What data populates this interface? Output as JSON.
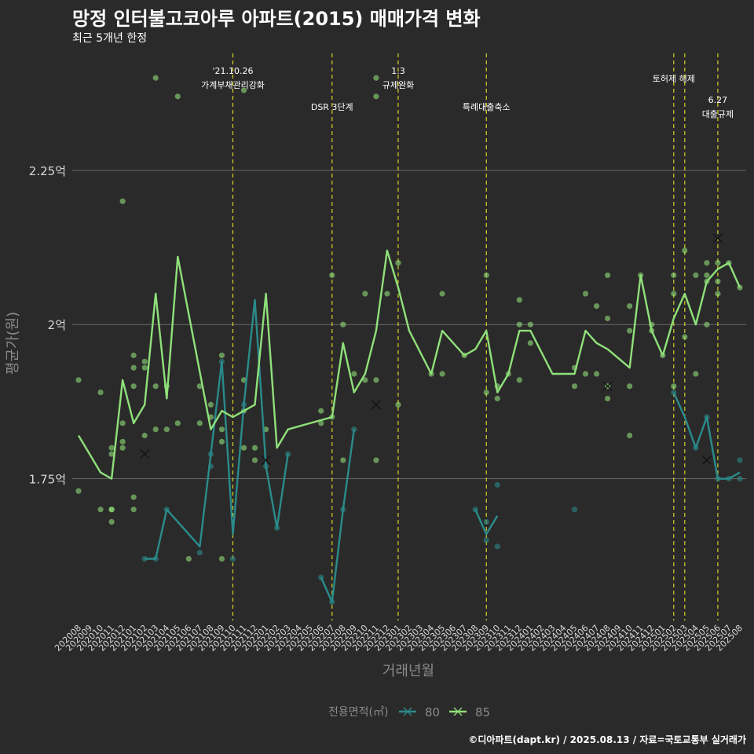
{
  "header": {
    "title": "망정 인터불고코아루 아파트(2015) 매매가격 변화",
    "subtitle": "최근 5개년 한정"
  },
  "footer": {
    "credit": "©디아파트(dapt.kr) / 2025.08.13 / 자료=국토교통부 실거래가"
  },
  "colors": {
    "background": "#2b2a2a",
    "grid": "#6a6a6a",
    "policy_line": "#d4d42a",
    "series_80": "#2a8b8b",
    "series_85": "#8fe07a",
    "axis_text": "#d8d8d8",
    "axis_title": "#8a8a8a"
  },
  "chart_data": {
    "type": "line",
    "xlabel": "거래년월",
    "ylabel": "평균가(원)",
    "x": [
      "202008",
      "202009",
      "202010",
      "202011",
      "202012",
      "202101",
      "202102",
      "202103",
      "202104",
      "202105",
      "202106",
      "202107",
      "202108",
      "202109",
      "202110",
      "202111",
      "202112",
      "202201",
      "202202",
      "202203",
      "202204",
      "202205",
      "202206",
      "202207",
      "202208",
      "202209",
      "202210",
      "202211",
      "202212",
      "202301",
      "202302",
      "202303",
      "202304",
      "202305",
      "202306",
      "202307",
      "202308",
      "202309",
      "202310",
      "202311",
      "202312",
      "202401",
      "202402",
      "202403",
      "202404",
      "202405",
      "202406",
      "202407",
      "202408",
      "202409",
      "202410",
      "202411",
      "202412",
      "202501",
      "202502",
      "202503",
      "202504",
      "202505",
      "202506",
      "202507",
      "202508"
    ],
    "ylim": [
      1.52,
      2.45
    ],
    "yticks": [
      {
        "value": 1.75,
        "label": "1.75억"
      },
      {
        "value": 2.0,
        "label": "2억"
      },
      {
        "value": 2.25,
        "label": "2.25억"
      }
    ],
    "legend": {
      "title": "전용면적(㎡)",
      "position": "bottom"
    },
    "series": [
      {
        "name": "80",
        "color": "#2a8b8b",
        "segments": [
          [
            [
              "202102",
              1.62
            ],
            [
              "202103",
              1.62
            ],
            [
              "202104",
              1.7
            ],
            [
              "202107",
              1.64
            ],
            [
              "202108",
              1.79
            ],
            [
              "202109",
              1.94
            ],
            [
              "202110",
              1.66
            ],
            [
              "202111",
              1.87
            ],
            [
              "202112",
              2.04
            ],
            [
              "202201",
              1.77
            ],
            [
              "202202",
              1.67
            ],
            [
              "202203",
              1.79
            ]
          ],
          [
            [
              "202206",
              1.59
            ],
            [
              "202207",
              1.55
            ],
            [
              "202208",
              1.7
            ],
            [
              "202209",
              1.83
            ]
          ],
          [
            [
              "202308",
              1.7
            ],
            [
              "202309",
              1.66
            ],
            [
              "202310",
              1.69
            ]
          ],
          [
            [
              "202502",
              1.89
            ],
            [
              "202503",
              1.85
            ],
            [
              "202504",
              1.8
            ],
            [
              "202505",
              1.85
            ],
            [
              "202506",
              1.75
            ],
            [
              "202507",
              1.75
            ],
            [
              "202508",
              1.76
            ]
          ]
        ],
        "points": [
          [
            "202102",
            1.62
          ],
          [
            "202103",
            1.62
          ],
          [
            "202104",
            1.7
          ],
          [
            "202107",
            1.63
          ],
          [
            "202108",
            1.79
          ],
          [
            "202108",
            1.77
          ],
          [
            "202109",
            1.94
          ],
          [
            "202110",
            1.62
          ],
          [
            "202111",
            1.87
          ],
          [
            "202201",
            1.77
          ],
          [
            "202202",
            1.67
          ],
          [
            "202203",
            1.79
          ],
          [
            "202206",
            1.59
          ],
          [
            "202207",
            1.55
          ],
          [
            "202208",
            1.7
          ],
          [
            "202209",
            1.83
          ],
          [
            "202308",
            1.7
          ],
          [
            "202309",
            1.65
          ],
          [
            "202309",
            1.68
          ],
          [
            "202310",
            1.64
          ],
          [
            "202310",
            1.74
          ],
          [
            "202405",
            1.7
          ],
          [
            "202502",
            1.89
          ],
          [
            "202504",
            1.8
          ],
          [
            "202505",
            1.85
          ],
          [
            "202506",
            1.75
          ],
          [
            "202507",
            1.75
          ],
          [
            "202508",
            1.75
          ],
          [
            "202508",
            1.78
          ]
        ],
        "median_marks": [
          [
            "202201",
            1.78
          ],
          [
            "202505",
            1.78
          ]
        ]
      },
      {
        "name": "85",
        "color": "#8fe07a",
        "segments": [
          [
            [
              "202008",
              1.82
            ],
            [
              "202010",
              1.76
            ],
            [
              "202011",
              1.75
            ],
            [
              "202012",
              1.91
            ],
            [
              "202101",
              1.84
            ],
            [
              "202102",
              1.87
            ],
            [
              "202103",
              2.05
            ],
            [
              "202104",
              1.88
            ],
            [
              "202105",
              2.11
            ],
            [
              "202108",
              1.83
            ],
            [
              "202109",
              1.86
            ],
            [
              "202110",
              1.85
            ],
            [
              "202111",
              1.86
            ],
            [
              "202112",
              1.87
            ],
            [
              "202201",
              2.05
            ],
            [
              "202202",
              1.8
            ],
            [
              "202203",
              1.83
            ],
            [
              "202207",
              1.85
            ],
            [
              "202208",
              1.97
            ],
            [
              "202209",
              1.89
            ],
            [
              "202210",
              1.92
            ],
            [
              "202211",
              1.99
            ],
            [
              "202212",
              2.12
            ],
            [
              "202301",
              2.06
            ],
            [
              "202302",
              1.99
            ],
            [
              "202304",
              1.92
            ],
            [
              "202305",
              1.99
            ],
            [
              "202307",
              1.95
            ],
            [
              "202308",
              1.96
            ],
            [
              "202309",
              1.99
            ],
            [
              "202310",
              1.89
            ],
            [
              "202311",
              1.92
            ],
            [
              "202312",
              1.99
            ],
            [
              "202401",
              1.99
            ],
            [
              "202403",
              1.92
            ],
            [
              "202405",
              1.92
            ],
            [
              "202406",
              1.99
            ],
            [
              "202407",
              1.97
            ],
            [
              "202408",
              1.96
            ],
            [
              "202410",
              1.93
            ],
            [
              "202411",
              2.08
            ],
            [
              "202412",
              1.99
            ],
            [
              "202501",
              1.95
            ],
            [
              "202502",
              2.01
            ],
            [
              "202503",
              2.05
            ],
            [
              "202504",
              2.0
            ],
            [
              "202505",
              2.07
            ],
            [
              "202506",
              2.09
            ],
            [
              "202507",
              2.1
            ],
            [
              "202508",
              2.06
            ]
          ]
        ],
        "points": [
          [
            "202008",
            1.91
          ],
          [
            "202008",
            1.73
          ],
          [
            "202010",
            1.7
          ],
          [
            "202010",
            1.89
          ],
          [
            "202011",
            1.7
          ],
          [
            "202011",
            1.68
          ],
          [
            "202011",
            1.8
          ],
          [
            "202011",
            1.79
          ],
          [
            "202011",
            1.7
          ],
          [
            "202012",
            2.2
          ],
          [
            "202012",
            1.84
          ],
          [
            "202012",
            1.81
          ],
          [
            "202012",
            1.8
          ],
          [
            "202101",
            1.95
          ],
          [
            "202101",
            1.93
          ],
          [
            "202101",
            1.9
          ],
          [
            "202101",
            1.72
          ],
          [
            "202101",
            1.7
          ],
          [
            "202102",
            1.94
          ],
          [
            "202102",
            1.93
          ],
          [
            "202102",
            1.82
          ],
          [
            "202103",
            2.4
          ],
          [
            "202103",
            1.9
          ],
          [
            "202103",
            1.83
          ],
          [
            "202104",
            1.9
          ],
          [
            "202104",
            1.83
          ],
          [
            "202105",
            2.37
          ],
          [
            "202105",
            1.84
          ],
          [
            "202106",
            1.62
          ],
          [
            "202107",
            1.9
          ],
          [
            "202107",
            1.84
          ],
          [
            "202108",
            1.87
          ],
          [
            "202108",
            1.85
          ],
          [
            "202109",
            1.95
          ],
          [
            "202109",
            1.83
          ],
          [
            "202109",
            1.81
          ],
          [
            "202109",
            1.62
          ],
          [
            "202111",
            2.38
          ],
          [
            "202111",
            1.91
          ],
          [
            "202111",
            1.86
          ],
          [
            "202111",
            1.8
          ],
          [
            "202112",
            1.8
          ],
          [
            "202112",
            1.78
          ],
          [
            "202201",
            1.83
          ],
          [
            "202206",
            1.86
          ],
          [
            "202206",
            1.84
          ],
          [
            "202207",
            2.08
          ],
          [
            "202207",
            1.85
          ],
          [
            "202208",
            2.0
          ],
          [
            "202208",
            1.78
          ],
          [
            "202209",
            1.92
          ],
          [
            "202210",
            2.05
          ],
          [
            "202210",
            1.91
          ],
          [
            "202211",
            2.4
          ],
          [
            "202211",
            2.37
          ],
          [
            "202211",
            1.91
          ],
          [
            "202211",
            1.78
          ],
          [
            "202212",
            2.05
          ],
          [
            "202301",
            2.1
          ],
          [
            "202301",
            1.87
          ],
          [
            "202304",
            1.92
          ],
          [
            "202305",
            2.05
          ],
          [
            "202305",
            1.92
          ],
          [
            "202307",
            1.95
          ],
          [
            "202309",
            2.08
          ],
          [
            "202309",
            1.89
          ],
          [
            "202310",
            1.9
          ],
          [
            "202310",
            1.88
          ],
          [
            "202311",
            1.92
          ],
          [
            "202312",
            2.04
          ],
          [
            "202312",
            2.0
          ],
          [
            "202312",
            1.91
          ],
          [
            "202401",
            2.0
          ],
          [
            "202401",
            1.97
          ],
          [
            "202405",
            1.93
          ],
          [
            "202405",
            1.9
          ],
          [
            "202406",
            2.05
          ],
          [
            "202406",
            1.92
          ],
          [
            "202407",
            2.03
          ],
          [
            "202407",
            1.92
          ],
          [
            "202408",
            2.08
          ],
          [
            "202408",
            2.01
          ],
          [
            "202408",
            1.9
          ],
          [
            "202408",
            1.88
          ],
          [
            "202410",
            2.03
          ],
          [
            "202410",
            1.99
          ],
          [
            "202410",
            1.9
          ],
          [
            "202410",
            1.82
          ],
          [
            "202411",
            2.08
          ],
          [
            "202412",
            2.0
          ],
          [
            "202412",
            1.99
          ],
          [
            "202501",
            1.95
          ],
          [
            "202502",
            2.08
          ],
          [
            "202502",
            2.05
          ],
          [
            "202502",
            1.9
          ],
          [
            "202503",
            2.12
          ],
          [
            "202503",
            1.98
          ],
          [
            "202504",
            2.08
          ],
          [
            "202504",
            1.92
          ],
          [
            "202505",
            2.1
          ],
          [
            "202505",
            2.08
          ],
          [
            "202505",
            2.07
          ],
          [
            "202505",
            2.0
          ],
          [
            "202506",
            2.1
          ],
          [
            "202506",
            2.07
          ],
          [
            "202506",
            2.05
          ],
          [
            "202507",
            2.1
          ],
          [
            "202508",
            2.06
          ]
        ],
        "median_marks": [
          [
            "202102",
            1.79
          ],
          [
            "202211",
            1.87
          ],
          [
            "202408",
            1.9
          ],
          [
            "202506",
            2.14
          ]
        ]
      }
    ],
    "annotations": [
      {
        "x": "202110",
        "label_lines": [
          "'21.10.26",
          "가계부채관리강화"
        ],
        "row": 1
      },
      {
        "x": "202207",
        "label_lines": [
          "DSR 3단계"
        ],
        "row": 3
      },
      {
        "x": "202301",
        "label_lines": [
          "1.3",
          "규제완화"
        ],
        "row": 1
      },
      {
        "x": "202309",
        "label_lines": [
          "특례대출축소"
        ],
        "row": 3
      },
      {
        "x": "202502",
        "label_lines": [
          "토허제 해제"
        ],
        "row": 2
      },
      {
        "x": "202503",
        "label_lines": [],
        "row": 2
      },
      {
        "x": "202506",
        "label_lines": [
          "6.27",
          "대출규제"
        ],
        "row": 4
      }
    ]
  }
}
